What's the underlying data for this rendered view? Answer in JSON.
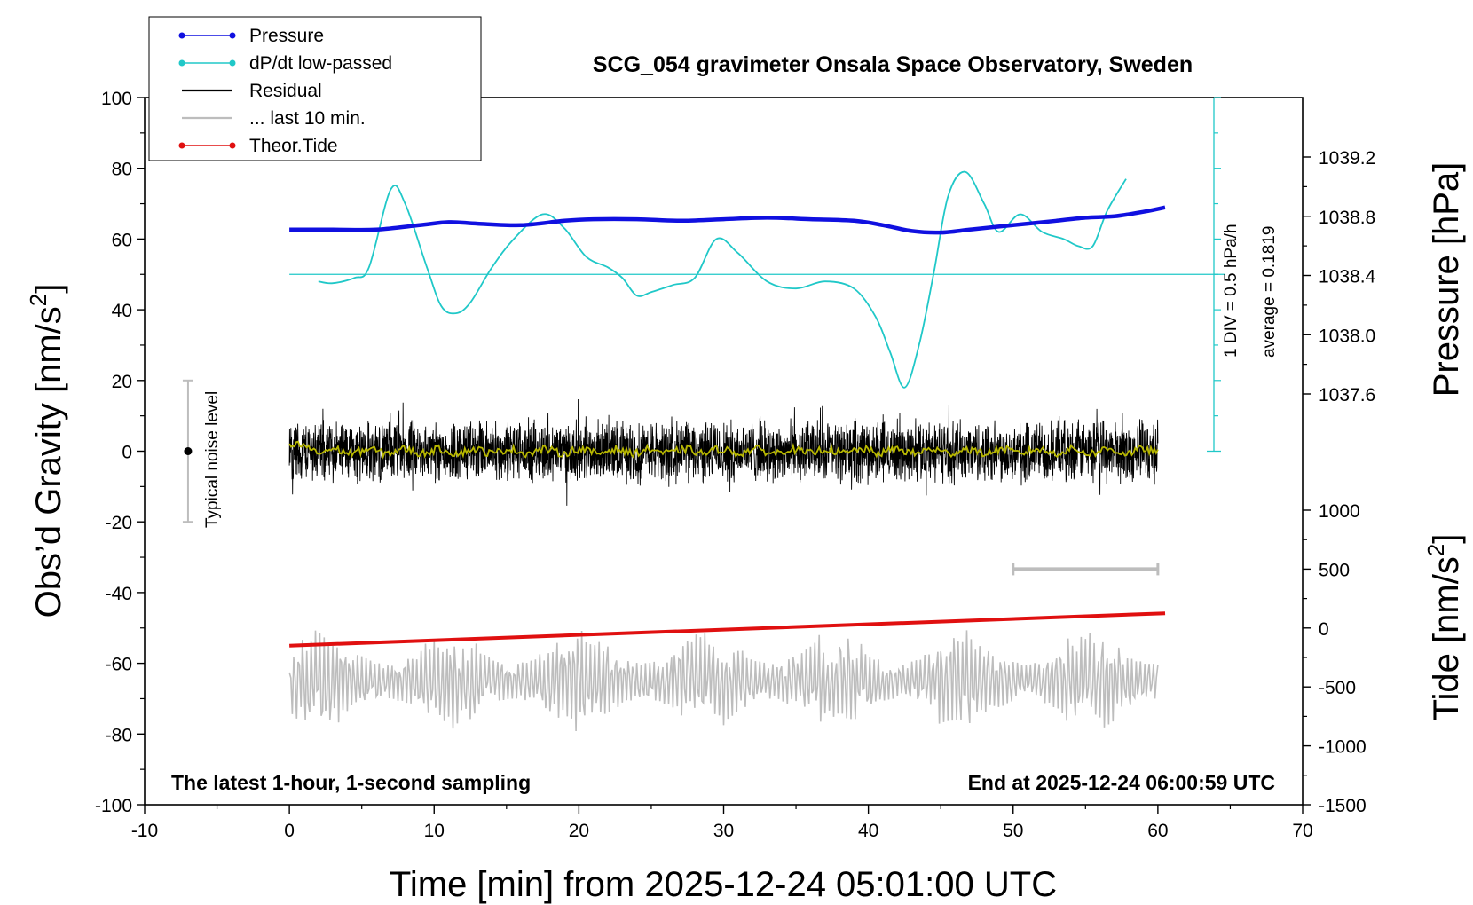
{
  "chart_data": {
    "type": "line",
    "title": "SCG_054 gravimeter Onsala Space Observatory, Sweden",
    "xlabel": "Time [min] from 2025-12-24 05:01:00 UTC",
    "ylabel_left_main": "Obs’d Gravity [nm/s",
    "ylabel_left_sup": "2",
    "ylabel_left_end": "]",
    "ylabel_right_top": "Pressure [hPa]",
    "ylabel_right_bottom_main": "Tide [nm/s",
    "ylabel_right_bottom_sup": "2",
    "ylabel_right_bottom_end": "]",
    "xlim": [
      -10,
      70
    ],
    "ylim": [
      -100,
      100
    ],
    "pressure_lim": [
      1037.6,
      1039.2
    ],
    "tide_lim": [
      -1500,
      1000
    ],
    "x_ticks": [
      "-10",
      "0",
      "10",
      "20",
      "30",
      "40",
      "50",
      "60",
      "70"
    ],
    "y_ticks": [
      "-100",
      "-80",
      "-60",
      "-40",
      "-20",
      "0",
      "20",
      "40",
      "60",
      "80",
      "100"
    ],
    "pressure_ticks": [
      "1037.6",
      "1038.0",
      "1038.4",
      "1038.8",
      "1039.2"
    ],
    "tide_ticks": [
      "-1500",
      "-1000",
      "-500",
      "0",
      "500",
      "1000"
    ],
    "footer_left": "The latest 1-hour, 1-second sampling",
    "footer_right": "End at 2025-12-24 06:00:59 UTC",
    "noise_label": "Typical noise level",
    "noise_range": [
      -20,
      20
    ],
    "noise_x": -7,
    "dpdt_scale_label": "1 DIV = 0.5 hPa/h",
    "dpdt_average_label": "average = 0.1819",
    "legend": {
      "position": "top-left",
      "items": [
        {
          "label": "Pressure",
          "color": "#1010e0",
          "marker": true
        },
        {
          "label": "dP/dt low-passed",
          "color": "#20c8c8",
          "marker": true
        },
        {
          "label": "Residual",
          "color": "#000000",
          "marker": false
        },
        {
          "label": "... last 10 min.",
          "color": "#bdbdbd",
          "marker": false
        },
        {
          "label": "Theor.Tide",
          "color": "#e01010",
          "marker": true
        }
      ]
    },
    "colors": {
      "pressure": "#1010e0",
      "dpdt": "#20c8c8",
      "residual": "#000000",
      "residual_lowpass": "#b8b800",
      "last10": "#bdbdbd",
      "tide": "#e01010",
      "noise": "#bdbdbd"
    },
    "series": [
      {
        "name": "Pressure",
        "unit": "hPa",
        "x": [
          0,
          3,
          6,
          9,
          11,
          13,
          16,
          19,
          21,
          24,
          27,
          30,
          33,
          36,
          39,
          41,
          43,
          45,
          47,
          49,
          51,
          53,
          55,
          57,
          59,
          60.5
        ],
        "values": [
          1038.71,
          1038.71,
          1038.71,
          1038.74,
          1038.76,
          1038.75,
          1038.74,
          1038.77,
          1038.78,
          1038.78,
          1038.77,
          1038.78,
          1038.79,
          1038.78,
          1038.77,
          1038.74,
          1038.7,
          1038.69,
          1038.71,
          1038.73,
          1038.75,
          1038.77,
          1038.79,
          1038.8,
          1038.83,
          1038.86
        ]
      },
      {
        "name": "dP/dt low-passed",
        "unit": "nm/s2 equivalent",
        "baseline": 50,
        "x": [
          2,
          3,
          4.5,
          5.5,
          7,
          8,
          9.5,
          10.5,
          11.5,
          12.5,
          14,
          15.5,
          17.5,
          19,
          20.5,
          22,
          23,
          24,
          25,
          26.5,
          28,
          29.5,
          31,
          33,
          35,
          37,
          39,
          40.5,
          41.5,
          42.5,
          43.5,
          44.5,
          45.5,
          46.7,
          48,
          49,
          50.5,
          52,
          53.5,
          54.5,
          55.5,
          56.5,
          57.8
        ],
        "values": [
          48,
          47.5,
          49,
          52,
          74,
          70,
          52,
          41,
          39,
          42,
          52,
          60,
          67,
          63,
          55,
          52,
          49,
          44,
          45,
          47,
          49,
          60,
          56,
          48,
          46,
          48,
          46,
          38,
          28,
          18,
          30,
          50,
          72,
          79,
          70,
          62,
          67,
          62,
          60,
          58,
          58,
          68,
          77
        ]
      },
      {
        "name": "Residual",
        "unit": "nm/s2",
        "x_range": [
          0,
          60
        ],
        "envelope": 10
      },
      {
        "name": "... last 10 min.",
        "unit": "nm/s2",
        "offset": -65,
        "x_range": [
          0,
          60
        ]
      },
      {
        "name": "Theor.Tide",
        "unit": "nm/s2",
        "x": [
          0,
          60.5
        ],
        "values": [
          -150,
          125
        ]
      }
    ],
    "last10_bar_x": [
      50,
      60
    ]
  }
}
